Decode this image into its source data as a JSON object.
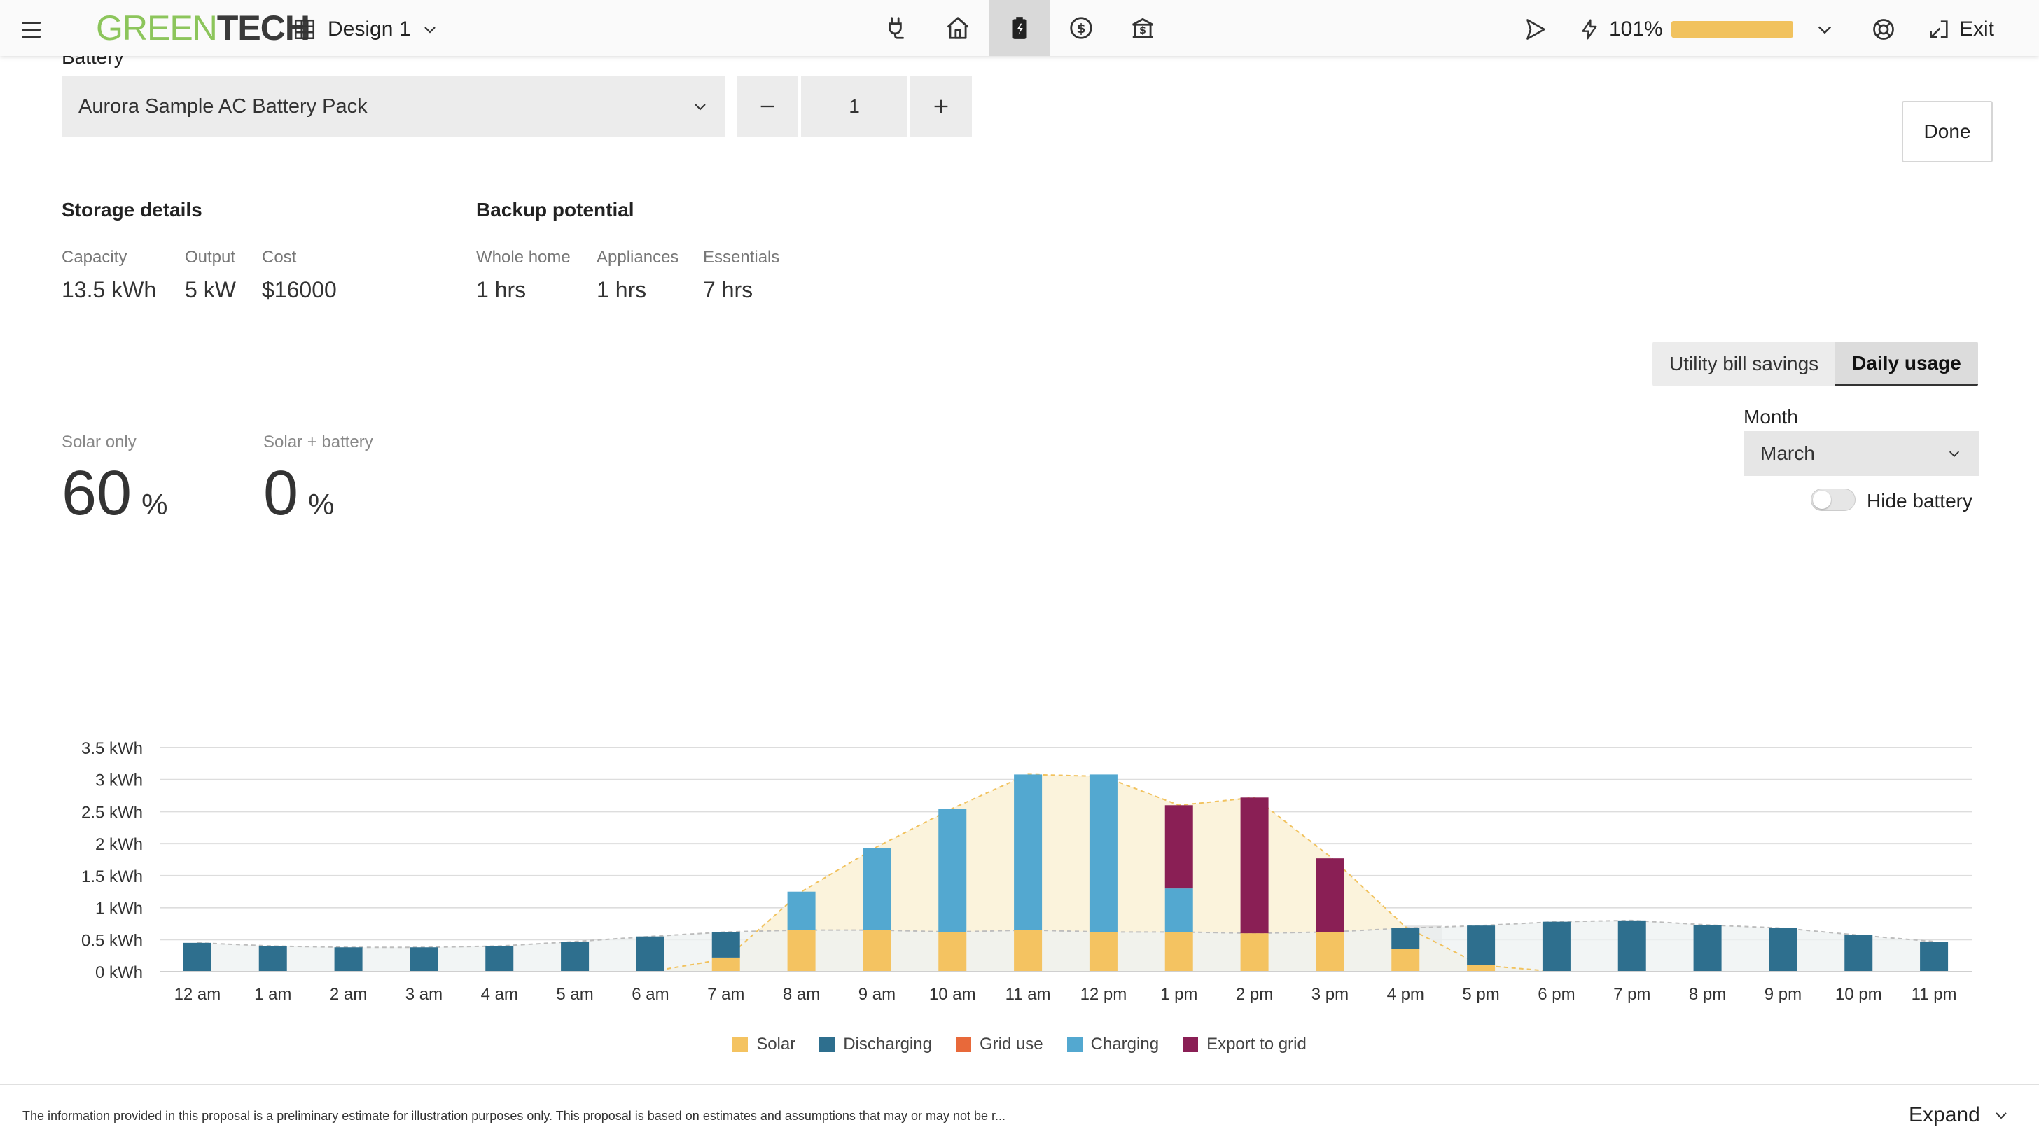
{
  "app": {
    "logo_part1": "GREEN",
    "logo_part2": "TECH",
    "design_name": "Design 1",
    "nav_icons": [
      "plug-icon",
      "home-icon",
      "battery-icon",
      "dollar-icon",
      "bank-icon"
    ],
    "power_percent": "101%",
    "power_fraction": 1.0,
    "exit_label": "Exit"
  },
  "battery": {
    "section_label": "Battery",
    "selected_pack": "Aurora Sample AC Battery Pack",
    "quantity": "1",
    "done_label": "Done"
  },
  "storage": {
    "title": "Storage details",
    "capacity_label": "Capacity",
    "capacity_value": "13.5 kWh",
    "output_label": "Output",
    "output_value": "5 kW",
    "cost_label": "Cost",
    "cost_value": "$16000"
  },
  "backup": {
    "title": "Backup potential",
    "whole_home_label": "Whole home",
    "whole_home_value": "1 hrs",
    "appliances_label": "Appliances",
    "appliances_value": "1 hrs",
    "essentials_label": "Essentials",
    "essentials_value": "7 hrs"
  },
  "offset": {
    "solar_only_label": "Solar only",
    "solar_only_value": "60",
    "solar_battery_label": "Solar + battery",
    "solar_battery_value": "0",
    "unit": "%"
  },
  "view_toggle": {
    "tab1": "Utility bill savings",
    "tab2": "Daily usage",
    "active": "Daily usage"
  },
  "month": {
    "label": "Month",
    "value": "March"
  },
  "hide_battery": {
    "label": "Hide battery",
    "enabled": false
  },
  "chart_data": {
    "type": "bar",
    "stacked": true,
    "categories": [
      "12 am",
      "1 am",
      "2 am",
      "3 am",
      "4 am",
      "5 am",
      "6 am",
      "7 am",
      "8 am",
      "9 am",
      "10 am",
      "11 am",
      "12 pm",
      "1 pm",
      "2 pm",
      "3 pm",
      "4 pm",
      "5 pm",
      "6 pm",
      "7 pm",
      "8 pm",
      "9 pm",
      "10 pm",
      "11 pm"
    ],
    "series": [
      {
        "name": "Solar",
        "color": "#f4c361",
        "values": [
          0,
          0,
          0,
          0,
          0,
          0,
          0,
          0.22,
          0.65,
          0.65,
          0.62,
          0.65,
          0.62,
          0.62,
          0.6,
          0.62,
          0.36,
          0.1,
          0,
          0,
          0,
          0,
          0,
          0
        ]
      },
      {
        "name": "Discharging",
        "color": "#2e6f8e",
        "values": [
          0.45,
          0.4,
          0.38,
          0.38,
          0.4,
          0.47,
          0.55,
          0.4,
          0,
          0,
          0,
          0,
          0,
          0,
          0,
          0,
          0.32,
          0.62,
          0.78,
          0.8,
          0.73,
          0.68,
          0.57,
          0.47
        ]
      },
      {
        "name": "Grid use",
        "color": "#e8693a",
        "values": [
          0,
          0,
          0,
          0,
          0,
          0,
          0,
          0,
          0,
          0,
          0,
          0,
          0,
          0,
          0,
          0,
          0,
          0,
          0,
          0,
          0,
          0,
          0,
          0
        ]
      },
      {
        "name": "Charging",
        "color": "#53a8d0",
        "values": [
          0,
          0,
          0,
          0,
          0,
          0,
          0,
          0,
          0.6,
          1.28,
          1.92,
          2.43,
          2.46,
          0.68,
          0,
          0,
          0,
          0,
          0,
          0,
          0,
          0,
          0,
          0
        ]
      },
      {
        "name": "Export to grid",
        "color": "#8a1f55",
        "values": [
          0,
          0,
          0,
          0,
          0,
          0,
          0,
          0,
          0,
          0,
          0,
          0,
          0,
          1.3,
          2.12,
          1.15,
          0,
          0,
          0,
          0,
          0,
          0,
          0,
          0
        ]
      }
    ],
    "solar_production": [
      0,
      0,
      0,
      0,
      0,
      0,
      0,
      0.2,
      1.25,
      1.95,
      2.55,
      3.08,
      3.05,
      2.6,
      2.72,
      1.8,
      0.7,
      0.1,
      0,
      0,
      0,
      0,
      0,
      0
    ],
    "consumption": [
      0.45,
      0.4,
      0.38,
      0.38,
      0.4,
      0.47,
      0.55,
      0.62,
      0.65,
      0.65,
      0.62,
      0.65,
      0.62,
      0.62,
      0.6,
      0.62,
      0.68,
      0.72,
      0.78,
      0.8,
      0.73,
      0.68,
      0.57,
      0.47
    ],
    "highlighted_category": "4 pm",
    "ylim": [
      0,
      3.5
    ],
    "yticks": [
      0,
      0.5,
      1,
      1.5,
      2,
      2.5,
      3,
      3.5
    ],
    "ytick_labels": [
      "0 kWh",
      "0.5 kWh",
      "1 kWh",
      "1.5 kWh",
      "2 kWh",
      "2.5 kWh",
      "3 kWh",
      "3.5 kWh"
    ],
    "grid": true,
    "legend_placement": "bottom-center"
  },
  "footer": {
    "disclaimer": "The information provided in this proposal is a preliminary estimate for illustration purposes only. This proposal is based on estimates and assumptions that may or may not be r...",
    "expand_label": "Expand"
  }
}
